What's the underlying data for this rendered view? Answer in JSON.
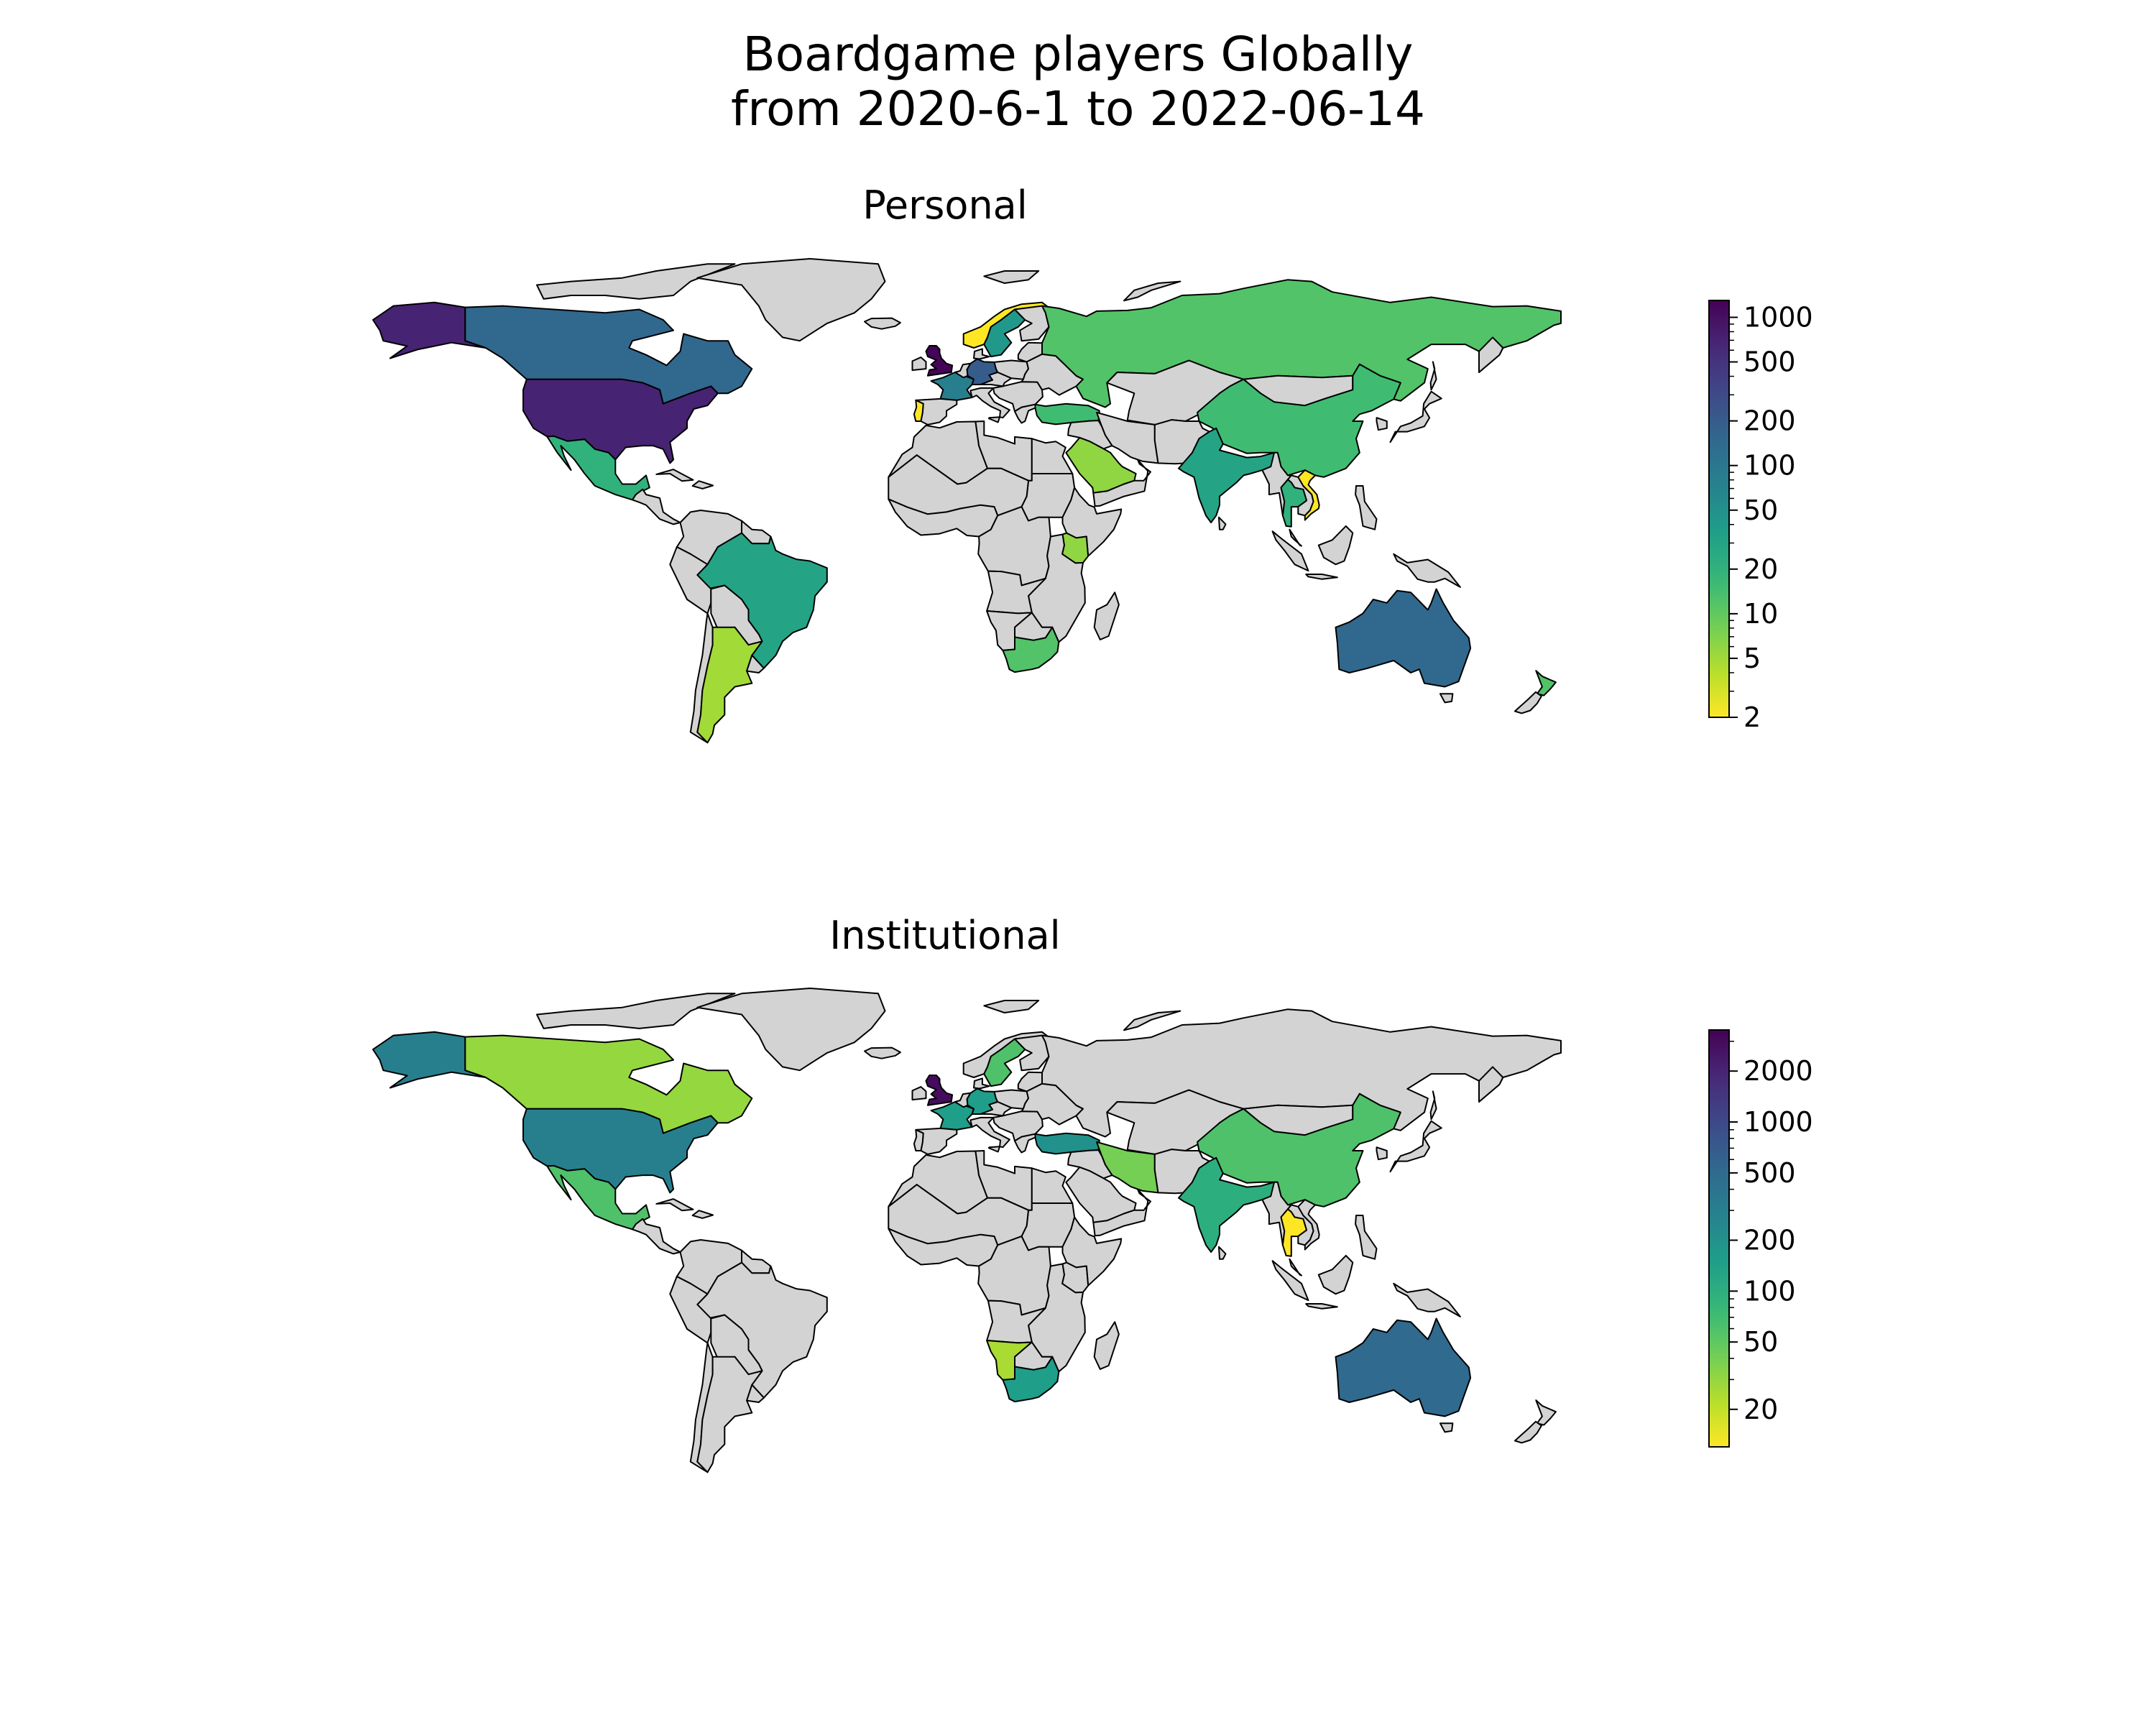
{
  "figure": {
    "title_line1": "Boardgame players Globally",
    "title_line2": "from 2020-6-1 to 2022-06-14"
  },
  "chart_data": [
    {
      "type": "choropleth",
      "title": "Personal",
      "scale": "log",
      "colormap": "viridis_r",
      "no_data_color": "#d3d3d3",
      "range": [
        2,
        1300
      ],
      "ticks": [
        2,
        5,
        10,
        20,
        50,
        100,
        200,
        500,
        1000
      ],
      "tick_labels": [
        "2",
        "5",
        "10",
        "20",
        "50",
        "100",
        "200",
        "500",
        "1000"
      ],
      "regions": [
        {
          "name": "United Kingdom",
          "value": 1200
        },
        {
          "name": "United States",
          "value": 700
        },
        {
          "name": "Alaska (USA)",
          "value": 700
        },
        {
          "name": "Canada",
          "value": 150
        },
        {
          "name": "Germany",
          "value": 200
        },
        {
          "name": "Australia",
          "value": 150
        },
        {
          "name": "France",
          "value": 80
        },
        {
          "name": "India",
          "value": 30
        },
        {
          "name": "Brazil",
          "value": 30
        },
        {
          "name": "Sweden",
          "value": 40
        },
        {
          "name": "Mexico",
          "value": 20
        },
        {
          "name": "China",
          "value": 15
        },
        {
          "name": "Russia",
          "value": 12
        },
        {
          "name": "South Africa",
          "value": 12
        },
        {
          "name": "Turkey",
          "value": 15
        },
        {
          "name": "New Zealand",
          "value": 12
        },
        {
          "name": "Saudi Arabia",
          "value": 6
        },
        {
          "name": "Argentina",
          "value": 5
        },
        {
          "name": "Kenya",
          "value": 6
        },
        {
          "name": "Norway",
          "value": 2
        },
        {
          "name": "Portugal",
          "value": 2
        },
        {
          "name": "Vietnam",
          "value": 2
        },
        {
          "name": "Thailand",
          "value": 20
        }
      ]
    },
    {
      "type": "choropleth",
      "title": "Institutional",
      "scale": "log",
      "colormap": "viridis_r",
      "no_data_color": "#d3d3d3",
      "range": [
        12,
        3500
      ],
      "ticks": [
        20,
        50,
        100,
        200,
        500,
        1000,
        2000
      ],
      "tick_labels": [
        "20",
        "50",
        "100",
        "200",
        "500",
        "1000",
        "2000"
      ],
      "regions": [
        {
          "name": "United Kingdom",
          "value": 3000
        },
        {
          "name": "United States",
          "value": 300
        },
        {
          "name": "Alaska (USA)",
          "value": 300
        },
        {
          "name": "Australia",
          "value": 500
        },
        {
          "name": "Canada",
          "value": 30
        },
        {
          "name": "Turkey",
          "value": 200
        },
        {
          "name": "Germany",
          "value": 150
        },
        {
          "name": "France",
          "value": 150
        },
        {
          "name": "India",
          "value": 100
        },
        {
          "name": "South Africa",
          "value": 150
        },
        {
          "name": "China",
          "value": 60
        },
        {
          "name": "Mexico",
          "value": 60
        },
        {
          "name": "Iran",
          "value": 40
        },
        {
          "name": "Sweden",
          "value": 60
        },
        {
          "name": "Namibia",
          "value": 25
        },
        {
          "name": "Thailand",
          "value": 12
        }
      ]
    }
  ]
}
